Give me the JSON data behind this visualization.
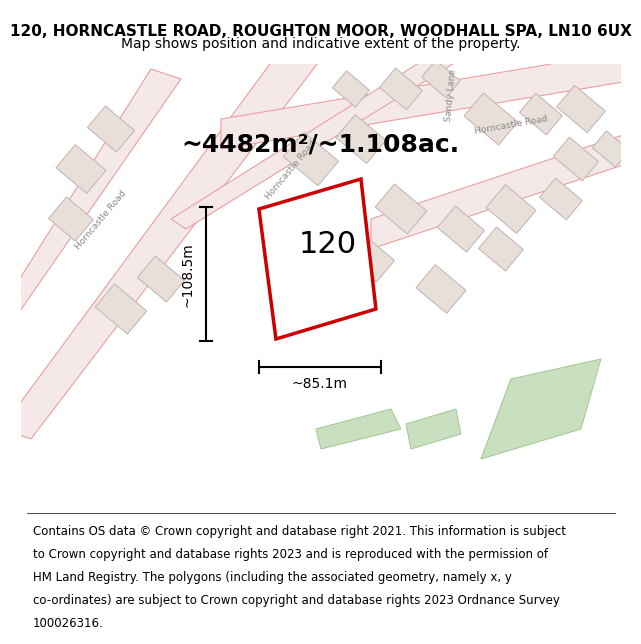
{
  "title_line1": "120, HORNCASTLE ROAD, ROUGHTON MOOR, WOODHALL SPA, LN10 6UX",
  "title_line2": "Map shows position and indicative extent of the property.",
  "area_text": "~4482m²/~1.108ac.",
  "number_label": "120",
  "width_label": "~85.1m",
  "height_label": "~108.5m",
  "footer_lines": [
    "Contains OS data © Crown copyright and database right 2021. This information is subject",
    "to Crown copyright and database rights 2023 and is reproduced with the permission of",
    "HM Land Registry. The polygons (including the associated geometry, namely x, y",
    "co-ordinates) are subject to Crown copyright and database rights 2023 Ordnance Survey",
    "100026316."
  ],
  "map_bg": "#ffffff",
  "plot_color": "#cc0000",
  "road_color": "#e8a0a0",
  "road_fill": "#f5e8e8",
  "block_color": "#c8b8b8",
  "block_fill": "#e8e0d8",
  "green_fill": "#c8dfc0",
  "green_color": "#a0c890",
  "title_fontsize": 11,
  "subtitle_fontsize": 10,
  "area_fontsize": 18,
  "number_fontsize": 22,
  "dim_fontsize": 10,
  "footer_fontsize": 8.5
}
